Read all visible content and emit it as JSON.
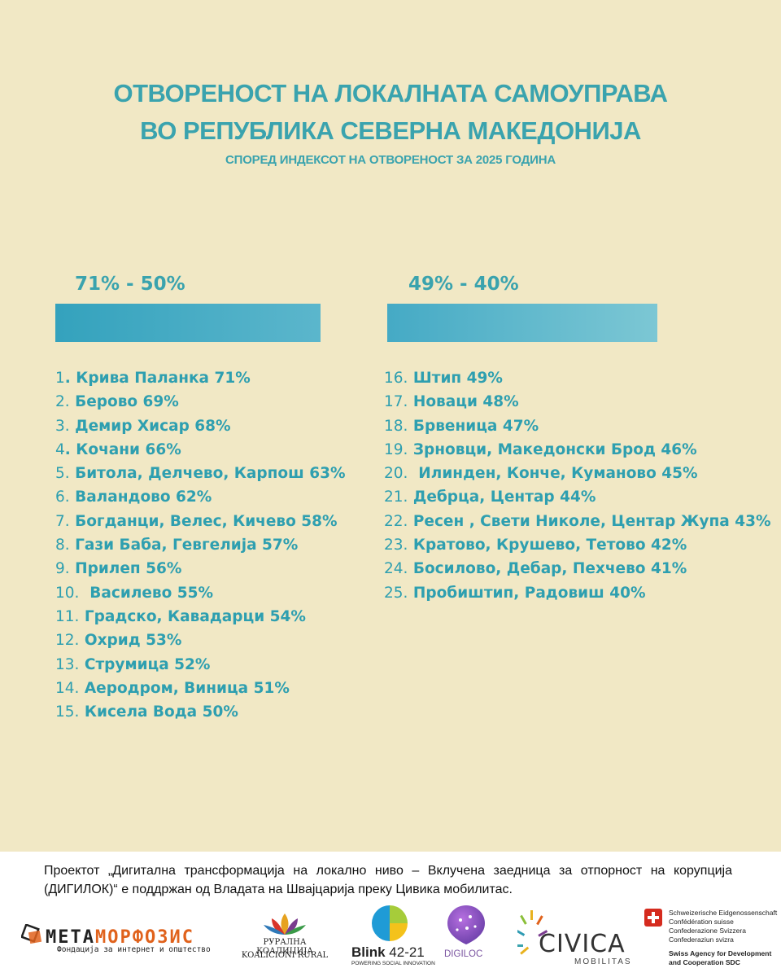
{
  "header": {
    "title_line1": "ОТВОРЕНОСТ НА ЛОКАЛНАТА САМОУПРАВА",
    "title_line2": "ВО РЕПУБЛИКА СЕВЕРНА МАКЕДОНИЈА",
    "subtitle": "СПОРЕД ИНДЕКСОТ НА ОТВОРЕНОСТ ЗА 2025 ГОДИНА"
  },
  "columns": [
    {
      "range": "71% - 50%",
      "items": [
        {
          "num": "1",
          "name": ". Крива Паланка 71%"
        },
        {
          "num": "2.",
          "name": " Берово 69%"
        },
        {
          "num": "3.",
          "name": " Демир Хисар 68%"
        },
        {
          "num": "4",
          "name": ". Кочани 66%"
        },
        {
          "num": "5.",
          "name": " Битола, Делчево, Карпош 63%"
        },
        {
          "num": "6.",
          "name": " Валандово 62%"
        },
        {
          "num": "7.",
          "name": " Богданци, Велес, Кичево 58%"
        },
        {
          "num": "8.",
          "name": " Гази Баба, Гевгелија 57%"
        },
        {
          "num": "9.",
          "name": " Прилеп 56%"
        },
        {
          "num": "10.",
          "name": "  Василево 55%"
        },
        {
          "num": "11.",
          "name": " Градско, Кавадарци 54%"
        },
        {
          "num": "12.",
          "name": " Охрид 53%"
        },
        {
          "num": "13.",
          "name": " Струмица 52%"
        },
        {
          "num": "14.",
          "name": " Аеродром, Виница 51%"
        },
        {
          "num": "15.",
          "name": " Кисела Вода 50%"
        }
      ]
    },
    {
      "range": "49% - 40%",
      "items": [
        {
          "num": "16.",
          "name": " Штип 49%"
        },
        {
          "num": "17.",
          "name": " Новаци 48%"
        },
        {
          "num": "18.",
          "name": " Брвеница 47%"
        },
        {
          "num": "19.",
          "name": " Зрновци, Македонски Брод 46%"
        },
        {
          "num": "20.",
          "name": "  Илинден, Конче, Куманово 45%"
        },
        {
          "num": "21.",
          "name": " Дебрца, Центар 44%"
        },
        {
          "num": "22.",
          "name": " Ресен , Свети Николе, Центар Жупа 43%"
        },
        {
          "num": "23.",
          "name": " Кратово, Крушево, Тетово 42%"
        },
        {
          "num": "24.",
          "name": " Босилово, Дебар, Пехчево 41%"
        },
        {
          "num": "25.",
          "name": " Пробиштип, Радовиш 40%"
        }
      ]
    }
  ],
  "footer": {
    "text": "Проектот „Дигитална трансформација на локално ниво – Вклучена заедница за отпорност на корупција (ДИГИЛОК)“ е поддржан од Владата на Швајцарија преку Цивика мобилитас.",
    "logos": {
      "meta_part1": "МЕТА",
      "meta_part2": "МОРФОЗИС",
      "meta_tagline": "Фондација за интернет и општество",
      "rural_line1": "РУРАЛНА КОАЛИЦИЈА",
      "rural_line2": "KOALICIONI RURAL",
      "blink_bold": "Blink",
      "blink_num": " 42-21",
      "blink_tagline": "POWERING SOCIAL INNOVATION",
      "digiloc": "DIGILOC",
      "civica": "CIVICA",
      "civica_sub": "MOBILITAS",
      "swiss_l1": "Schweizerische Eidgenossenschaft",
      "swiss_l2": "Confédération suisse",
      "swiss_l3": "Confederazione Svizzera",
      "swiss_l4": "Confederaziun svizra",
      "swiss_l5": "Swiss Agency for Development",
      "swiss_l6": "and Cooperation SDC"
    }
  },
  "colors": {
    "background": "#f1e8c5",
    "accent": "#3aa3ae",
    "bar_left_start": "#34a2bd",
    "bar_right_end": "#7cc7d4",
    "orange": "#e0621c"
  }
}
